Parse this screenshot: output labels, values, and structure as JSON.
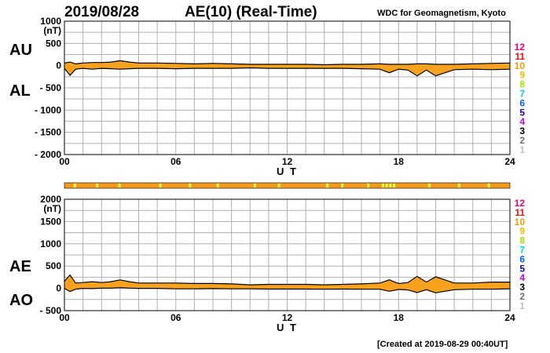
{
  "header": {
    "date": "2019/08/28",
    "title": "AE(10) (Real-Time)",
    "source": "WDC for Geomagnetism, Kyoto",
    "created": "[Created at 2019-08-29 00:40UT]"
  },
  "legend": {
    "items": [
      {
        "label": "12",
        "color": "#e8007a"
      },
      {
        "label": "11",
        "color": "#e81010"
      },
      {
        "label": "10",
        "color": "#f39a00"
      },
      {
        "label": "9",
        "color": "#e6c000"
      },
      {
        "label": "8",
        "color": "#a8e000"
      },
      {
        "label": "7",
        "color": "#00d6e0"
      },
      {
        "label": "6",
        "color": "#0060ff"
      },
      {
        "label": "5",
        "color": "#2000c0"
      },
      {
        "label": "4",
        "color": "#c000e0"
      },
      {
        "label": "3",
        "color": "#000000"
      },
      {
        "label": "2",
        "color": "#707070"
      },
      {
        "label": "1",
        "color": "#c0c0c0"
      }
    ]
  },
  "colors": {
    "fill": "#f7a21e",
    "bar": "#f39a1c",
    "bar_alt": "#f4ff50",
    "grid": "#b0b0b0",
    "line": "#000000"
  },
  "chart_data": [
    {
      "type": "area",
      "panel": "AU/AL",
      "side_labels": {
        "upper": "AU",
        "lower": "AL"
      },
      "xlabel": "U T",
      "ylabel": "(nT)",
      "xlim": [
        0,
        24
      ],
      "ylim": [
        -2000,
        1000
      ],
      "x_ticks": [
        "00",
        "06",
        "12",
        "18",
        "24"
      ],
      "y_ticks": [
        "1000",
        "500",
        "0",
        "- 500",
        "- 1000",
        "- 1500",
        "- 2000"
      ],
      "x": [
        0,
        0.3,
        0.6,
        1,
        1.5,
        2,
        2.5,
        3,
        3.5,
        4,
        5,
        6,
        7,
        8,
        9,
        10,
        11,
        12,
        13,
        14,
        15,
        16,
        17,
        17.5,
        18,
        18.5,
        19,
        19.5,
        20,
        21,
        22,
        23,
        24
      ],
      "series": [
        {
          "name": "AU",
          "values": [
            60,
            80,
            40,
            60,
            70,
            70,
            80,
            110,
            80,
            60,
            60,
            50,
            40,
            50,
            40,
            30,
            30,
            30,
            30,
            20,
            30,
            30,
            40,
            30,
            30,
            30,
            40,
            40,
            30,
            30,
            40,
            50,
            60
          ]
        },
        {
          "name": "AL",
          "values": [
            -60,
            -220,
            -80,
            -60,
            -80,
            -60,
            -70,
            -80,
            -70,
            -60,
            -60,
            -70,
            -60,
            -60,
            -60,
            -50,
            -60,
            -60,
            -60,
            -60,
            -60,
            -70,
            -80,
            -160,
            -80,
            -100,
            -230,
            -100,
            -230,
            -90,
            -80,
            -90,
            -80
          ]
        }
      ]
    },
    {
      "type": "area",
      "panel": "AE/AO",
      "side_labels": {
        "upper": "AE",
        "lower": "AO"
      },
      "xlabel": "U T",
      "ylabel": "(nT)",
      "xlim": [
        0,
        24
      ],
      "ylim": [
        -500,
        2000
      ],
      "x_ticks": [
        "00",
        "06",
        "12",
        "18",
        "24"
      ],
      "y_ticks": [
        "2000",
        "1500",
        "1000",
        "500",
        "0",
        "- 500"
      ],
      "x": [
        0,
        0.3,
        0.6,
        1,
        1.5,
        2,
        2.5,
        3,
        3.5,
        4,
        5,
        6,
        7,
        8,
        9,
        10,
        11,
        12,
        13,
        14,
        15,
        16,
        17,
        17.5,
        18,
        18.5,
        19,
        19.5,
        20,
        21,
        22,
        23,
        24
      ],
      "series": [
        {
          "name": "AE",
          "values": [
            160,
            300,
            120,
            130,
            150,
            130,
            150,
            190,
            150,
            120,
            120,
            120,
            110,
            110,
            100,
            80,
            90,
            90,
            90,
            80,
            90,
            100,
            120,
            190,
            110,
            130,
            270,
            140,
            260,
            120,
            120,
            140,
            140
          ]
        },
        {
          "name": "AO",
          "values": [
            0,
            -70,
            -20,
            0,
            -5,
            5,
            5,
            15,
            5,
            0,
            0,
            -10,
            -10,
            -5,
            -10,
            -10,
            -15,
            -15,
            -15,
            -20,
            -15,
            -20,
            -20,
            -65,
            -25,
            -35,
            -95,
            -30,
            -100,
            -30,
            -20,
            -20,
            -10
          ]
        }
      ]
    }
  ]
}
